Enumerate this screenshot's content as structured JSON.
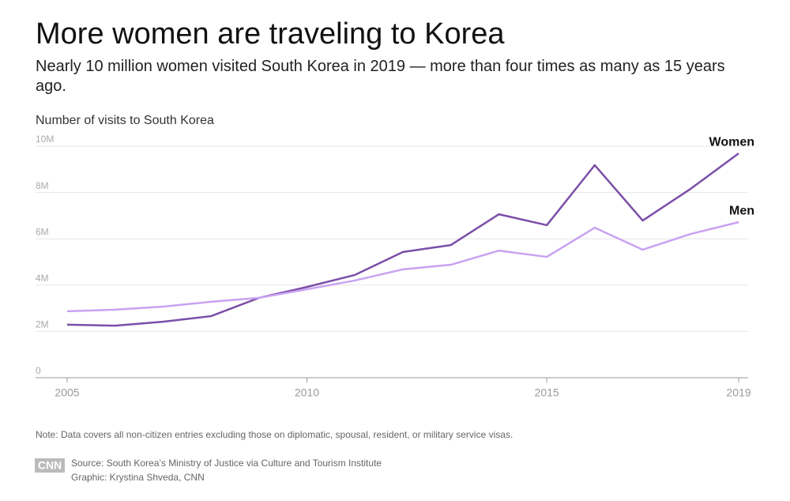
{
  "chart_data": {
    "type": "line",
    "title": "More women are traveling to Korea",
    "subtitle": "Nearly 10 million women visited South Korea in 2019 — more than four times as many as 15 years ago.",
    "y_label": "Number of visits to South Korea",
    "x": [
      2005,
      2006,
      2007,
      2008,
      2009,
      2010,
      2011,
      2012,
      2013,
      2014,
      2015,
      2016,
      2017,
      2018,
      2019
    ],
    "series": [
      {
        "name": "Women",
        "color": "#7b4fa8",
        "values": [
          2290000,
          2250000,
          2420000,
          2660000,
          3450000,
          3920000,
          4440000,
          5430000,
          5730000,
          7060000,
          6590000,
          9180000,
          6790000,
          8160000,
          9690000
        ]
      },
      {
        "name": "Men",
        "color": "#c9a2f2",
        "values": [
          2870000,
          2940000,
          3070000,
          3280000,
          3450000,
          3820000,
          4200000,
          4680000,
          4880000,
          5490000,
          5220000,
          6480000,
          5530000,
          6210000,
          6720000
        ]
      }
    ],
    "xlim": [
      2005,
      2019
    ],
    "xticks": [
      2005,
      2010,
      2015,
      2019
    ],
    "ylim": [
      0,
      10000000
    ],
    "yticks": [
      0,
      {
        "value": 2000000,
        "label": "2M"
      },
      {
        "value": 4000000,
        "label": "4M"
      },
      {
        "value": 6000000,
        "label": "6M"
      },
      {
        "value": 8000000,
        "label": "8M"
      },
      {
        "value": 10000000,
        "label": "10M"
      }
    ],
    "grid": true,
    "note": "Note: Data covers all non-citizen entries excluding those on diplomatic, spousal, resident, or military service visas.",
    "logo": "CNN",
    "source": "Source: South Korea’s Ministry of Justice via Culture and Tourism Institute",
    "credit": "Graphic: Krystina Shveda, CNN"
  }
}
